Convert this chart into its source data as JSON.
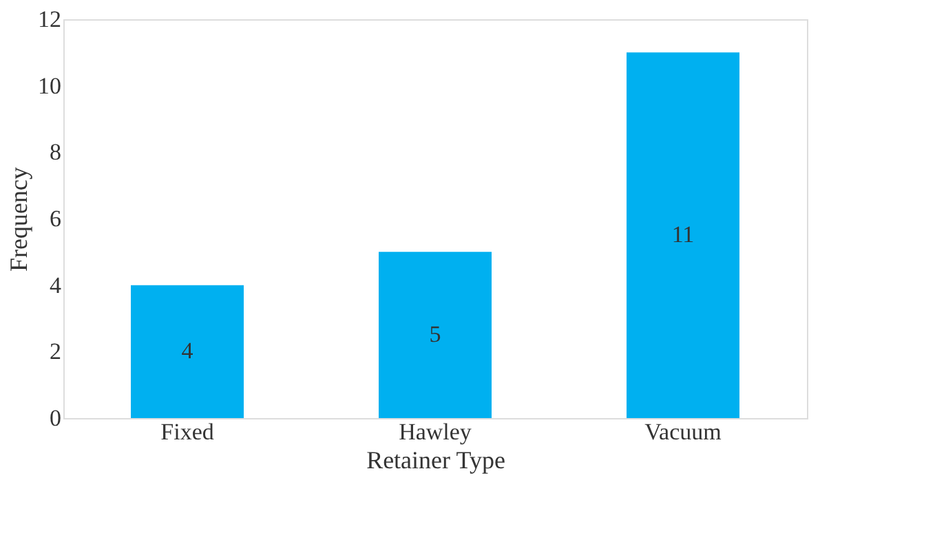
{
  "chart_data": {
    "type": "bar",
    "xlabel": "Retainer Type",
    "ylabel": "Frequency",
    "categories": [
      "Fixed",
      "Hawley",
      "Vacuum"
    ],
    "values": [
      4,
      5,
      11
    ],
    "color": "#00b0f0",
    "ylim": [
      0,
      12
    ],
    "yticks": [
      0,
      2,
      4,
      6,
      8,
      10,
      12
    ],
    "grid": false,
    "data_labels": true
  }
}
